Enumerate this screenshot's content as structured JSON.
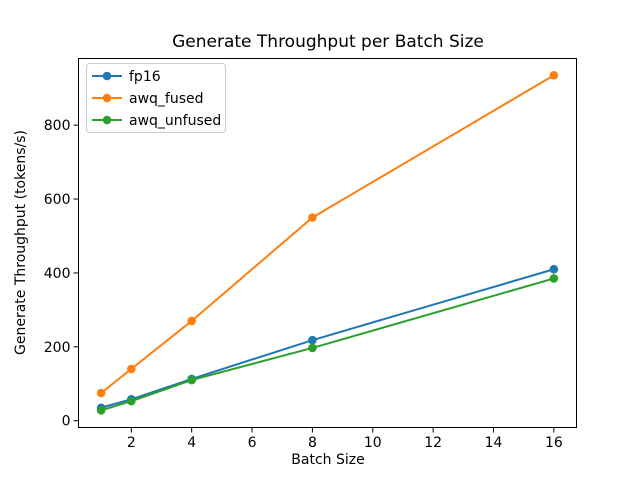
{
  "figure": {
    "background": "#ffffff",
    "text_color": "#000000",
    "axes_color": "#000000",
    "legend_border_color": "#cccccc"
  },
  "chart_data": {
    "type": "line",
    "title": "Generate Throughput per Batch Size",
    "xlabel": "Batch Size",
    "ylabel": "Generate Throughput (tokens/s)",
    "x": [
      1,
      2,
      4,
      8,
      16
    ],
    "series": [
      {
        "name": "fp16",
        "color": "#1f77b4",
        "values": [
          35,
          58,
          113,
          218,
          410
        ]
      },
      {
        "name": "awq_fused",
        "color": "#ff7f0e",
        "values": [
          75,
          140,
          270,
          550,
          935
        ]
      },
      {
        "name": "awq_unfused",
        "color": "#2ca02c",
        "values": [
          28,
          53,
          110,
          197,
          385
        ]
      }
    ],
    "marker": "o",
    "xticks": [
      2,
      4,
      6,
      8,
      10,
      12,
      14,
      16
    ],
    "yticks": [
      0,
      200,
      400,
      600,
      800
    ],
    "xlim": [
      0.25,
      16.75
    ],
    "ylim": [
      -18.4,
      980.4
    ],
    "grid": false,
    "legend": {
      "location": "upper left",
      "entries": [
        "fp16",
        "awq_fused",
        "awq_unfused"
      ]
    }
  }
}
